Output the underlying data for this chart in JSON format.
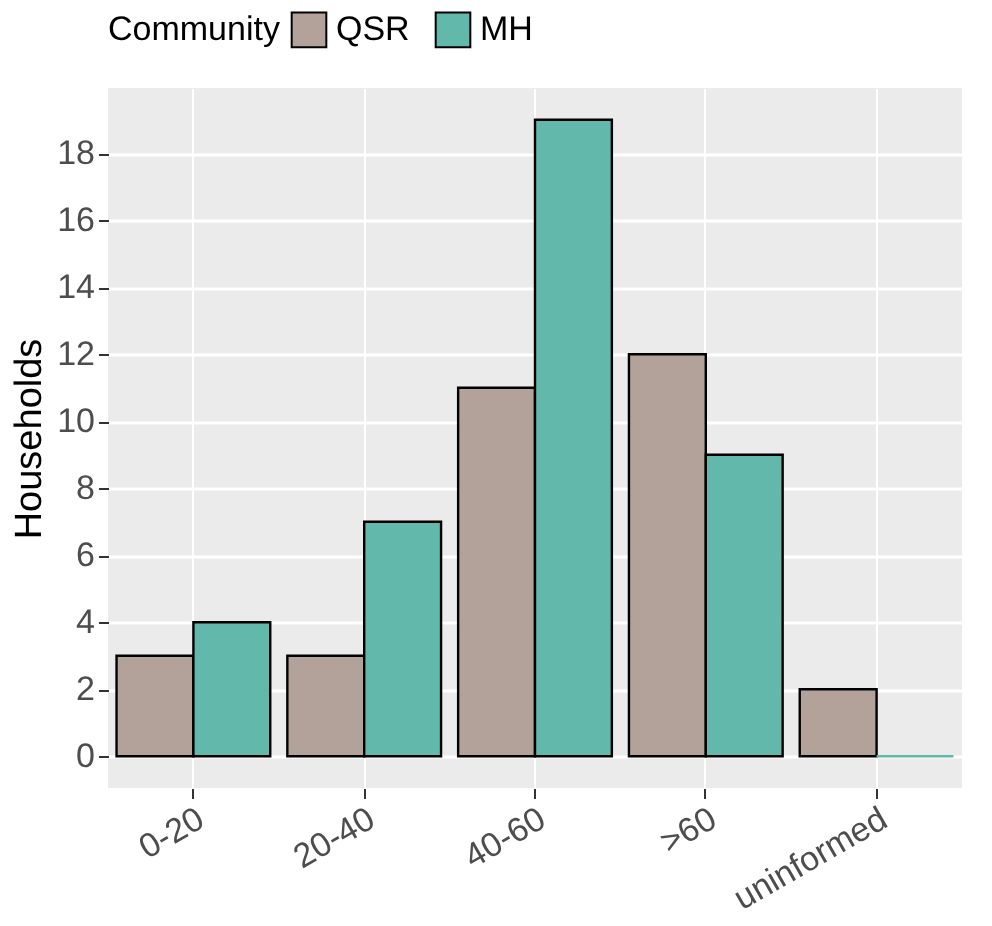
{
  "chart_data": {
    "type": "bar",
    "ylabel": "Households",
    "legend_title": "Community",
    "categories": [
      "0-20",
      "20-40",
      "40-60",
      ">60",
      "uninformed"
    ],
    "series": [
      {
        "name": "QSR",
        "color": "#b2a299",
        "values": [
          3,
          3,
          11,
          12,
          2
        ]
      },
      {
        "name": "MH",
        "color": "#62b8aa",
        "values": [
          4,
          7,
          19,
          9,
          0
        ]
      }
    ],
    "ylim": [
      -0.95,
      19.95
    ],
    "yticks": [
      0,
      2,
      4,
      6,
      8,
      10,
      12,
      14,
      16,
      18
    ],
    "grid": true,
    "legend": "top"
  }
}
